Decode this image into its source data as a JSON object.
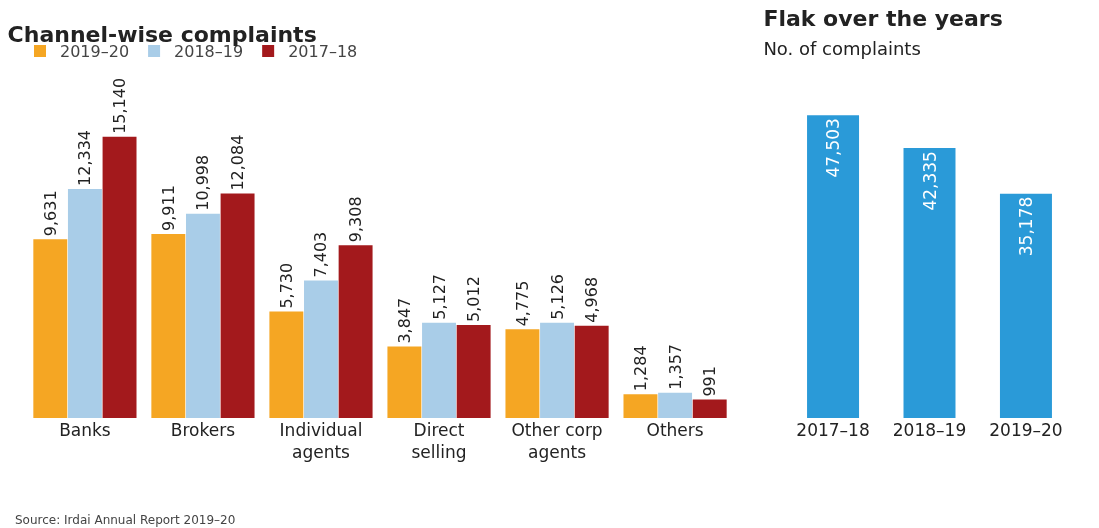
{
  "chart_data": [
    {
      "type": "bar",
      "title": "Channel-wise complaints",
      "categories": [
        "Banks",
        "Brokers",
        "Individual agents",
        "Direct selling",
        "Other corp agents",
        "Others"
      ],
      "series": [
        {
          "name": "2019–20",
          "color": "#f5a623",
          "values": [
            9631,
            9911,
            5730,
            3847,
            4775,
            1284
          ],
          "value_labels": [
            "9,631",
            "9,911",
            "5,730",
            "3,847",
            "4,775",
            "1,284"
          ]
        },
        {
          "name": "2018–19",
          "color": "#a9cde8",
          "values": [
            12334,
            10998,
            7403,
            5127,
            5126,
            1357
          ],
          "value_labels": [
            "12,334",
            "10,998",
            "7,403",
            "5,127",
            "5,126",
            "1,357"
          ]
        },
        {
          "name": "2017–18",
          "color": "#a3191c",
          "values": [
            15140,
            12084,
            9308,
            5012,
            4968,
            991
          ],
          "value_labels": [
            "15,140",
            "12,084",
            "9,308",
            "5,012",
            "4,968",
            "991"
          ]
        }
      ],
      "legend": "top left",
      "grid": false,
      "tick_labels": "x",
      "annotations": [
        "Source: Irdai Annual Report 2019–20"
      ]
    },
    {
      "type": "bar",
      "title": "Flak over the years",
      "subtitle": "No. of complaints",
      "categories": [
        "2017–18",
        "2018–19",
        "2019–20"
      ],
      "series": [
        {
          "color": "#2a9ad8",
          "values": [
            47503,
            42335,
            35178
          ],
          "value_labels": [
            "47,503",
            "42,335",
            "35,178"
          ]
        }
      ],
      "grid": false,
      "tick_labels": "x"
    }
  ]
}
